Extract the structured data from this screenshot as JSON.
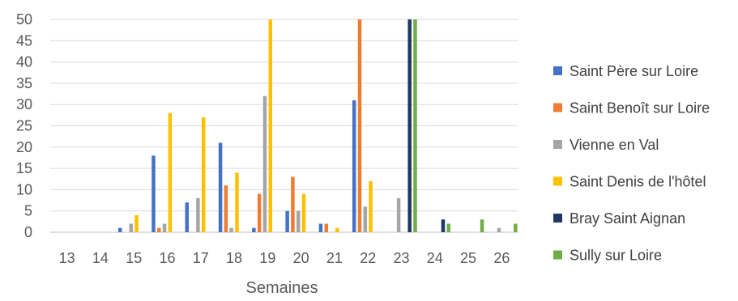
{
  "chart_data": {
    "type": "bar",
    "title": "",
    "xlabel": "Semaines",
    "ylabel": "",
    "ylim": [
      0,
      50
    ],
    "y_ticks": [
      0,
      5,
      10,
      15,
      20,
      25,
      30,
      35,
      40,
      45,
      50
    ],
    "grid": "horizontal",
    "legend_position": "right",
    "categories": [
      "13",
      "14",
      "15",
      "16",
      "17",
      "18",
      "19",
      "20",
      "21",
      "22",
      "23",
      "24",
      "25",
      "26"
    ],
    "series": [
      {
        "name": "Saint Père sur Loire",
        "color": "#4472C4",
        "values": [
          0,
          0,
          1,
          18,
          7,
          21,
          1,
          5,
          2,
          31,
          0,
          0,
          0,
          0
        ]
      },
      {
        "name": "Saint Benoît sur Loire",
        "color": "#ED7D31",
        "values": [
          0,
          0,
          0,
          1,
          0,
          11,
          9,
          13,
          2,
          50,
          0,
          0,
          0,
          0
        ]
      },
      {
        "name": "Vienne en Val",
        "color": "#A5A5A5",
        "values": [
          0,
          0,
          2,
          2,
          8,
          1,
          32,
          5,
          0,
          6,
          8,
          0,
          0,
          1
        ]
      },
      {
        "name": "Saint Denis de l'hôtel",
        "color": "#FFC000",
        "values": [
          0,
          0,
          4,
          28,
          27,
          14,
          50,
          9,
          1,
          12,
          0,
          0,
          0,
          0
        ]
      },
      {
        "name": "Bray Saint Aignan",
        "color": "#1F3864",
        "values": [
          0,
          0,
          0,
          0,
          0,
          0,
          0,
          0,
          0,
          0,
          50,
          3,
          0,
          0
        ]
      },
      {
        "name": "Sully sur Loire",
        "color": "#70AD47",
        "values": [
          0,
          0,
          0,
          0,
          0,
          0,
          0,
          0,
          0,
          0,
          50,
          2,
          3,
          2
        ]
      }
    ]
  }
}
